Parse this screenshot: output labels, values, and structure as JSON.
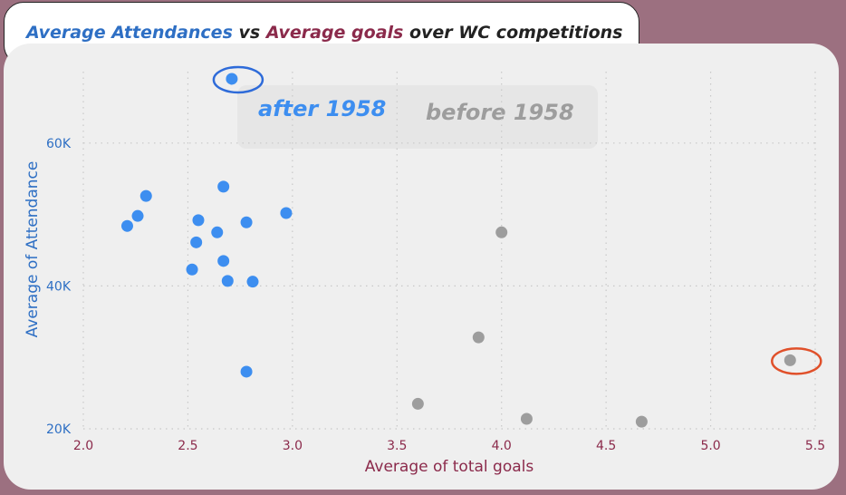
{
  "header": {
    "title_part1": "Average Attendances",
    "title_part2": " vs ",
    "title_part3": "Average goals",
    "title_part4": " over WC competitions"
  },
  "legend": {
    "after_label": "after 1958",
    "before_label": "before 1958"
  },
  "colors": {
    "after": "#3d8ef0",
    "before": "#9d9d9d",
    "highlight_after": "#2e6bd9",
    "highlight_before": "#e0502a",
    "gridline": "#c8c8c8"
  },
  "chart_data": {
    "type": "scatter",
    "xlabel": "Average of total goals",
    "ylabel": "Average of Attendance",
    "xlim": [
      2.0,
      5.5
    ],
    "ylim": [
      20000,
      70000
    ],
    "x_ticks": [
      2.0,
      2.5,
      3.0,
      3.5,
      4.0,
      4.5,
      5.0,
      5.5
    ],
    "x_tick_labels": [
      "2.0",
      "2.5",
      "3.0",
      "3.5",
      "4.0",
      "4.5",
      "5.0",
      "5.5"
    ],
    "y_ticks": [
      20000,
      40000,
      60000
    ],
    "y_tick_labels": [
      "20K",
      "40K",
      "60K"
    ],
    "grid": true,
    "legend_position": "top-center",
    "series": [
      {
        "name": "after 1958",
        "points": [
          {
            "x": 2.71,
            "y": 68990
          },
          {
            "x": 2.67,
            "y": 53900
          },
          {
            "x": 2.3,
            "y": 52600
          },
          {
            "x": 2.26,
            "y": 49800
          },
          {
            "x": 2.21,
            "y": 48400
          },
          {
            "x": 2.55,
            "y": 49200
          },
          {
            "x": 2.78,
            "y": 48900
          },
          {
            "x": 2.97,
            "y": 50200
          },
          {
            "x": 2.64,
            "y": 47500
          },
          {
            "x": 2.54,
            "y": 46100
          },
          {
            "x": 2.67,
            "y": 43500
          },
          {
            "x": 2.52,
            "y": 42300
          },
          {
            "x": 2.69,
            "y": 40700
          },
          {
            "x": 2.81,
            "y": 40600
          },
          {
            "x": 2.78,
            "y": 28000
          }
        ]
      },
      {
        "name": "before 1958",
        "points": [
          {
            "x": 4.0,
            "y": 47500
          },
          {
            "x": 3.89,
            "y": 32800
          },
          {
            "x": 3.6,
            "y": 23500
          },
          {
            "x": 4.12,
            "y": 21400
          },
          {
            "x": 4.67,
            "y": 21000
          },
          {
            "x": 5.38,
            "y": 29600
          }
        ]
      }
    ],
    "highlights": [
      {
        "series": "after 1958",
        "x": 2.71,
        "y": 68990
      },
      {
        "series": "before 1958",
        "x": 5.38,
        "y": 29600
      }
    ]
  }
}
